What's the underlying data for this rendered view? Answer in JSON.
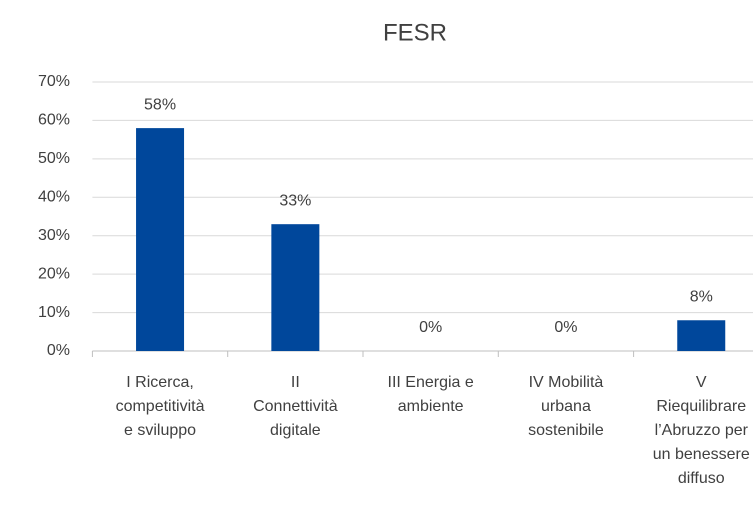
{
  "chart_data": {
    "type": "bar",
    "title": "FESR",
    "categories": [
      [
        "I Ricerca,",
        "competitività",
        "e sviluppo"
      ],
      [
        "II",
        "Connettività",
        "digitale"
      ],
      [
        "III Energia e",
        "ambiente"
      ],
      [
        "IV Mobilità",
        "urbana",
        "sostenibile"
      ],
      [
        "V",
        "Riequilibrare",
        "l’Abruzzo per",
        "un benessere",
        "diffuso"
      ]
    ],
    "values": [
      58,
      33,
      0,
      0,
      8
    ],
    "value_labels": [
      "58%",
      "33%",
      "0%",
      "0%",
      "8%"
    ],
    "color": "#00479b",
    "ylim": [
      0,
      70
    ],
    "yticks": [
      {
        "value": 0,
        "label": "0%"
      },
      {
        "value": 10,
        "label": "10%"
      },
      {
        "value": 20,
        "label": "20%"
      },
      {
        "value": 30,
        "label": "30%"
      },
      {
        "value": 40,
        "label": "40%"
      },
      {
        "value": 50,
        "label": "50%"
      },
      {
        "value": 60,
        "label": "60%"
      },
      {
        "value": 70,
        "label": "70%"
      }
    ],
    "grid": true
  }
}
